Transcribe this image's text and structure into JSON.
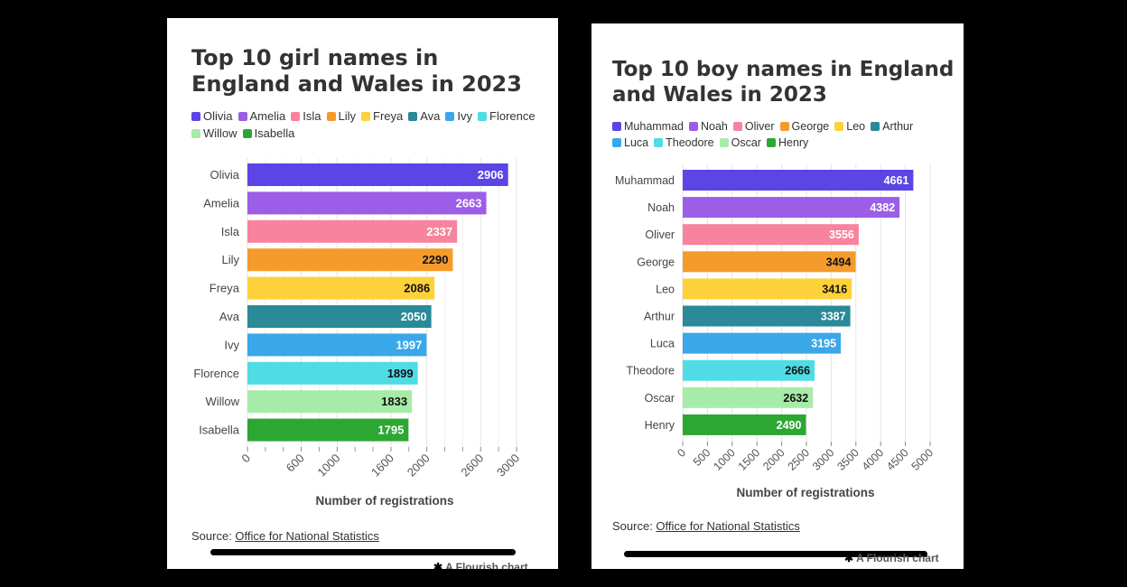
{
  "left": {
    "title": "Top 10 girl names in England and Wales in 2023",
    "source_label": "Source: ",
    "source_link": "Office for National Statistics",
    "flourish": "A Flourish chart"
  },
  "right": {
    "title": "Top 10 boy names in England and Wales in 2023",
    "source_label": "Source: ",
    "source_link": "Office for National Statistics",
    "flourish": "A Flourish chart"
  },
  "chart_data": [
    {
      "type": "bar",
      "orientation": "horizontal",
      "title": "Top 10 girl names in England and Wales in 2023",
      "xlabel": "Number of registrations",
      "ylabel": "",
      "categories": [
        "Olivia",
        "Amelia",
        "Isla",
        "Lily",
        "Freya",
        "Ava",
        "Ivy",
        "Florence",
        "Willow",
        "Isabella"
      ],
      "values": [
        2906,
        2663,
        2337,
        2290,
        2086,
        2050,
        1997,
        1899,
        1833,
        1795
      ],
      "colors": [
        "#5b45e5",
        "#9c5ee6",
        "#f7839e",
        "#f59b2c",
        "#fdd13a",
        "#2a8a97",
        "#3aa7e8",
        "#4fdce4",
        "#a7eba8",
        "#2ca832"
      ],
      "label_colors": [
        "#ffffff",
        "#ffffff",
        "#ffffff",
        "#111111",
        "#111111",
        "#ffffff",
        "#ffffff",
        "#111111",
        "#111111",
        "#ffffff"
      ],
      "xlim": [
        0,
        3000
      ],
      "xticks": [
        0,
        600,
        1000,
        1600,
        2000,
        2600,
        3000
      ],
      "minor_ticks": [
        200,
        400,
        800,
        1200,
        1400,
        1800,
        2200,
        2400,
        2800
      ],
      "grid": true,
      "legend": "top"
    },
    {
      "type": "bar",
      "orientation": "horizontal",
      "title": "Top 10 boy names in England and Wales in 2023",
      "xlabel": "Number of registrations",
      "ylabel": "",
      "categories": [
        "Muhammad",
        "Noah",
        "Oliver",
        "George",
        "Leo",
        "Arthur",
        "Luca",
        "Theodore",
        "Oscar",
        "Henry"
      ],
      "values": [
        4661,
        4382,
        3556,
        3494,
        3416,
        3387,
        3195,
        2666,
        2632,
        2490
      ],
      "colors": [
        "#5b45e5",
        "#9c5ee6",
        "#f7839e",
        "#f59b2c",
        "#fdd13a",
        "#2a8a97",
        "#3aa7e8",
        "#4fdce4",
        "#a7eba8",
        "#2ca832"
      ],
      "label_colors": [
        "#ffffff",
        "#ffffff",
        "#ffffff",
        "#111111",
        "#111111",
        "#ffffff",
        "#ffffff",
        "#111111",
        "#111111",
        "#ffffff"
      ],
      "xlim": [
        0,
        5000
      ],
      "xticks": [
        0,
        500,
        1000,
        1500,
        2000,
        2500,
        3000,
        3500,
        4000,
        4500,
        5000
      ],
      "minor_ticks": [],
      "grid": true,
      "legend": "top"
    }
  ]
}
